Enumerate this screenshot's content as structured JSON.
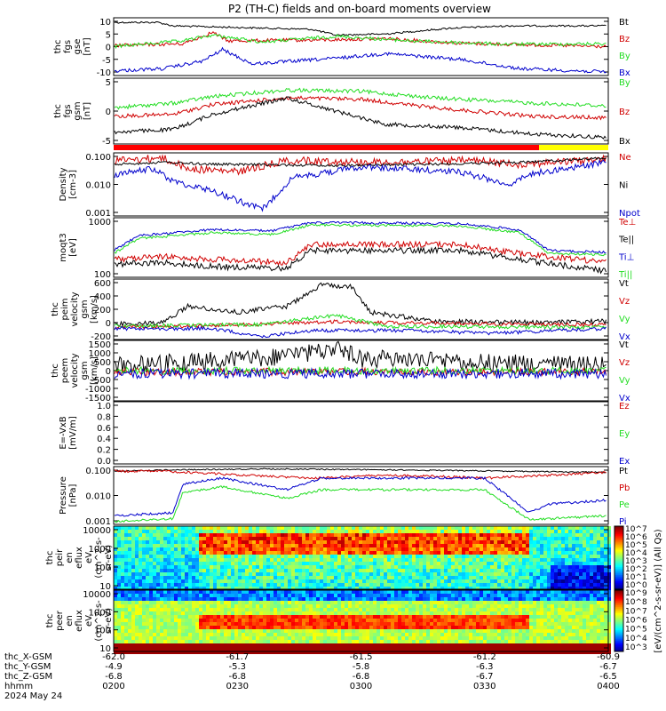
{
  "title": "P2 (TH-C) fields and on-board moments overview",
  "colors": {
    "black": "#000000",
    "red": "#d00000",
    "green": "#22dd22",
    "blue": "#0000cc",
    "yellow": "#ffff00",
    "barRed": "#ff0000"
  },
  "status_bar": {
    "segments": [
      {
        "from": 0,
        "to": 0.86,
        "color": "#ff0000"
      },
      {
        "from": 0.86,
        "to": 1.0,
        "color": "#ffff00"
      }
    ]
  },
  "panels": [
    {
      "id": "fgs-gse",
      "ylabel": [
        "thc",
        "fgs",
        "gse",
        "[nT]"
      ],
      "yticks": [
        "10",
        "5",
        "0",
        "-5",
        "-10"
      ],
      "legend": [
        {
          "text": "Bt",
          "color": "#000000"
        },
        {
          "text": "Bz",
          "color": "#d00000"
        },
        {
          "text": "By",
          "color": "#22dd22"
        },
        {
          "text": "Bx",
          "color": "#0000cc"
        }
      ]
    },
    {
      "id": "fgs-gsm",
      "ylabel": [
        "thc",
        "fgs",
        "gsm",
        "[nT]"
      ],
      "yticks": [
        "5",
        "0",
        "-5"
      ],
      "legend": [
        {
          "text": "By",
          "color": "#22dd22"
        },
        {
          "text": "Bz",
          "color": "#d00000"
        },
        {
          "text": "Bx",
          "color": "#000000"
        }
      ]
    },
    {
      "id": "density",
      "ylabel": [
        "Density",
        "[cm-3]"
      ],
      "yticks": [
        "0.100",
        "0.010",
        "0.001"
      ],
      "legend": [
        {
          "text": "Ne",
          "color": "#d00000"
        },
        {
          "text": "Ni",
          "color": "#000000"
        },
        {
          "text": "Npot",
          "color": "#0000cc"
        }
      ]
    },
    {
      "id": "temperature",
      "ylabel": [
        "moqt3",
        "[eV]"
      ],
      "yticks": [
        "1000",
        "100"
      ],
      "legend": [
        {
          "text": "Te⊥",
          "color": "#d00000"
        },
        {
          "text": "Te||",
          "color": "#000000"
        },
        {
          "text": "Ti⊥",
          "color": "#0000cc"
        },
        {
          "text": "Ti||",
          "color": "#22dd22"
        }
      ]
    },
    {
      "id": "peim-velocity",
      "ylabel": [
        "thc",
        "peim",
        "velocity",
        "gsm",
        "[km/s]"
      ],
      "yticks": [
        "600",
        "400",
        "200",
        "0",
        "-200"
      ],
      "legend": [
        {
          "text": "Vt",
          "color": "#000000"
        },
        {
          "text": "Vz",
          "color": "#d00000"
        },
        {
          "text": "Vy",
          "color": "#22dd22"
        },
        {
          "text": "Vx",
          "color": "#0000cc"
        }
      ]
    },
    {
      "id": "peem-velocity",
      "ylabel": [
        "thc",
        "peem",
        "velocity",
        "gsm",
        "[km/s]"
      ],
      "yticks": [
        "1500",
        "1000",
        "500",
        "0",
        "-500",
        "-1000",
        "-1500"
      ],
      "legend": [
        {
          "text": "Vt",
          "color": "#000000"
        },
        {
          "text": "Vz",
          "color": "#d00000"
        },
        {
          "text": "Vy",
          "color": "#22dd22"
        },
        {
          "text": "Vx",
          "color": "#0000cc"
        }
      ]
    },
    {
      "id": "efield",
      "ylabel": [
        "E=-VxB",
        "[mV/m]"
      ],
      "yticks": [
        "1.0",
        "0.8",
        "0.6",
        "0.4",
        "0.2",
        "0.0"
      ],
      "legend": [
        {
          "text": "Ez",
          "color": "#d00000"
        },
        {
          "text": "Ey",
          "color": "#22dd22"
        },
        {
          "text": "Ex",
          "color": "#0000cc"
        }
      ]
    },
    {
      "id": "pressure",
      "ylabel": [
        "Pressure",
        "[nPa]"
      ],
      "yticks": [
        "0.100",
        "0.010",
        "0.001"
      ],
      "legend": [
        {
          "text": "Pt",
          "color": "#000000"
        },
        {
          "text": "Pb",
          "color": "#d00000"
        },
        {
          "text": "Pe",
          "color": "#22dd22"
        },
        {
          "text": "Pi",
          "color": "#0000cc"
        }
      ]
    },
    {
      "id": "peir-spec",
      "ylabel": [
        "thc",
        "peir",
        "en",
        "eflux",
        "eV",
        "(cm^2-s-",
        "sr-eV)"
      ],
      "yticks": [
        "10000",
        "1000",
        "100",
        "10"
      ]
    },
    {
      "id": "peer-spec",
      "ylabel": [
        "thc",
        "peer",
        "en",
        "eflux",
        "eV",
        "(cm^2-s-",
        "sr-eV)"
      ],
      "yticks": [
        "10000",
        "1000",
        "100",
        "10"
      ]
    }
  ],
  "colorbar": {
    "top": {
      "labels": [
        "10^7",
        "10^6",
        "10^5",
        "10^4",
        "10^3",
        "10^2",
        "10^1",
        "10^0"
      ]
    },
    "bottom": {
      "labels": [
        "10^9",
        "10^8",
        "10^7",
        "10^6",
        "10^5",
        "10^4",
        "10^3"
      ]
    },
    "label": "[eV/(cm^2-s-sr-eV)] (All Qs)"
  },
  "xaxis": {
    "row_labels": [
      "thc_X-GSM",
      "thc_Y-GSM",
      "thc_Z-GSM",
      "hhmm",
      "2024 May 24"
    ],
    "ticks": [
      {
        "x": "-62.0",
        "y": "-4.9",
        "z": "-6.8",
        "t": "0200"
      },
      {
        "x": "-61.7",
        "y": "-5.3",
        "z": "-6.8",
        "t": "0230"
      },
      {
        "x": "-61.5",
        "y": "-5.8",
        "z": "-6.8",
        "t": "0300"
      },
      {
        "x": "-61.2",
        "y": "-6.3",
        "z": "-6.7",
        "t": "0330"
      },
      {
        "x": "-60.9",
        "y": "-6.7",
        "z": "-6.5",
        "t": "0400"
      }
    ]
  },
  "chart_data": {
    "type": "line",
    "x_time_range": [
      "0200",
      "0400"
    ],
    "series": [
      {
        "panel": "fgs-gse",
        "name": "Bt",
        "color": "#000000",
        "base": 12,
        "noise": 0.5,
        "steps": [
          [
            0,
            12
          ],
          [
            0.1,
            12
          ],
          [
            0.18,
            10
          ],
          [
            0.4,
            9
          ],
          [
            0.5,
            7
          ],
          [
            0.6,
            9
          ],
          [
            0.7,
            10
          ],
          [
            0.85,
            11
          ],
          [
            1.0,
            11
          ]
        ]
      },
      {
        "panel": "fgs-gse",
        "name": "Bz",
        "color": "#d00000",
        "noise": 0.6,
        "steps": [
          [
            0,
            1
          ],
          [
            0.15,
            2
          ],
          [
            0.22,
            5
          ],
          [
            0.25,
            2
          ],
          [
            0.4,
            2
          ],
          [
            0.5,
            3
          ],
          [
            0.6,
            2
          ],
          [
            0.8,
            1
          ],
          [
            1.0,
            0
          ]
        ]
      },
      {
        "panel": "fgs-gse",
        "name": "By",
        "color": "#22dd22",
        "noise": 0.6,
        "steps": [
          [
            0,
            1
          ],
          [
            0.15,
            3
          ],
          [
            0.25,
            6
          ],
          [
            0.35,
            2
          ],
          [
            0.45,
            5
          ],
          [
            0.6,
            3
          ],
          [
            0.8,
            1
          ],
          [
            1.0,
            1
          ]
        ]
      },
      {
        "panel": "fgs-gse",
        "name": "Bx",
        "color": "#0000cc",
        "noise": 0.6,
        "steps": [
          [
            0,
            -10
          ],
          [
            0.15,
            -8
          ],
          [
            0.22,
            -4
          ],
          [
            0.3,
            -7
          ],
          [
            0.45,
            -4
          ],
          [
            0.55,
            -2
          ],
          [
            0.7,
            -5
          ],
          [
            0.85,
            -8
          ],
          [
            1.0,
            -11
          ]
        ]
      }
    ]
  }
}
